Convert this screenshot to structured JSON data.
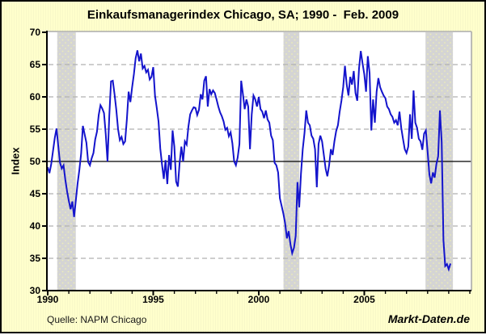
{
  "chart_data": {
    "type": "line",
    "title": "Einkaufsmanagerindex Chicago, SA; 1990 -  Feb. 2009",
    "ylabel": "Index",
    "source_note": "Quelle: NAPM Chicago",
    "watermark": "Markt-Daten.de",
    "frequency": "monthly",
    "start": "1990-01",
    "end": "2009-02",
    "ylim": [
      30,
      70
    ],
    "xlim": [
      1990,
      2010.1
    ],
    "y_ticks": [
      70,
      65,
      60,
      55,
      50,
      45,
      40,
      35,
      30
    ],
    "x_major_ticks": [
      1990,
      1995,
      2000,
      2005
    ],
    "x_minor_tick_every_years": 1,
    "reference_line": 50,
    "grid": "dashed horizontal gridlines at 5-point steps, none at 50",
    "legend": "none",
    "recession_bands_years": [
      [
        1990.45,
        1991.33
      ],
      [
        2001.17,
        2001.92
      ],
      [
        2007.9,
        2009.2
      ]
    ],
    "series": [
      {
        "name": "Einkaufsmanagerindex Chicago (SA)",
        "monthly_values": [
          49.1,
          48.2,
          49.6,
          51.6,
          53.6,
          55.1,
          52.4,
          49.8,
          48.9,
          49.4,
          47.2,
          45.4,
          43.9,
          42.6,
          43.8,
          41.4,
          44.0,
          46.6,
          48.7,
          51.2,
          55.5,
          54.2,
          52.9,
          49.9,
          49.4,
          50.5,
          51.3,
          53.4,
          54.6,
          57.2,
          58.7,
          58.2,
          57.5,
          54.2,
          50.0,
          57.0,
          62.4,
          62.5,
          60.4,
          58.0,
          55.0,
          53.3,
          53.8,
          52.7,
          53.1,
          56.5,
          60.8,
          59.2,
          61.5,
          63.5,
          66.0,
          67.2,
          65.5,
          66.7,
          64.4,
          64.8,
          63.8,
          64.2,
          62.7,
          63.1,
          64.6,
          60.2,
          58.3,
          56.2,
          52.0,
          49.5,
          47.3,
          50.2,
          46.5,
          51.0,
          48.7,
          54.8,
          52.3,
          46.9,
          46.1,
          49.8,
          52.3,
          50.0,
          53.1,
          52.6,
          55.4,
          57.3,
          57.9,
          58.4,
          58.3,
          57.2,
          58.0,
          60.4,
          59.6,
          62.5,
          63.2,
          58.5,
          61.2,
          60.4,
          61.0,
          60.6,
          59.6,
          58.5,
          57.6,
          57.0,
          56.2,
          54.9,
          55.2,
          53.9,
          54.5,
          52.8,
          50.0,
          49.4,
          50.6,
          52.7,
          62.5,
          60.4,
          58.1,
          59.6,
          58.5,
          51.9,
          57.3,
          60.2,
          59.6,
          58.5,
          60.0,
          58.1,
          57.7,
          56.7,
          57.9,
          56.5,
          56.0,
          54.0,
          53.3,
          49.8,
          49.4,
          48.3,
          44.3,
          43.1,
          41.9,
          40.4,
          38.1,
          39.2,
          37.2,
          35.8,
          36.6,
          38.5,
          46.8,
          42.9,
          48.1,
          51.9,
          54.4,
          57.9,
          56.0,
          55.6,
          54.0,
          53.5,
          51.9,
          46.0,
          52.7,
          54.0,
          53.1,
          51.0,
          48.9,
          47.7,
          49.4,
          51.9,
          51.0,
          53.1,
          54.7,
          55.6,
          57.7,
          59.4,
          61.5,
          64.8,
          61.9,
          60.2,
          63.1,
          61.9,
          64.0,
          60.6,
          59.4,
          64.4,
          67.1,
          65.2,
          63.5,
          60.8,
          66.3,
          63.7,
          54.8,
          59.6,
          56.0,
          60.8,
          62.9,
          61.5,
          60.8,
          60.2,
          59.8,
          58.5,
          58.1,
          57.3,
          56.9,
          56.0,
          56.4,
          55.6,
          57.7,
          55.2,
          53.5,
          51.9,
          51.3,
          52.3,
          57.3,
          53.5,
          61.0,
          56.0,
          55.2,
          53.5,
          53.1,
          51.8,
          54.3,
          54.8,
          51.5,
          48.0,
          46.6,
          48.3,
          47.5,
          49.6,
          50.8,
          57.9,
          53.0,
          37.8,
          33.8,
          34.1,
          33.3,
          34.2
        ]
      }
    ],
    "colors": {
      "background": "#FFFFCC",
      "plot_background": "#FFFFFF",
      "line": "#1414CC",
      "recession_band": "#D4D4D4",
      "band_dot": "#EDEDB8",
      "grid": "#B0B0B0",
      "reference_line": "#000000",
      "axis": "#000000",
      "plot_border": "#ABABAB",
      "outer_border": "#000000",
      "text": "#000000"
    }
  }
}
